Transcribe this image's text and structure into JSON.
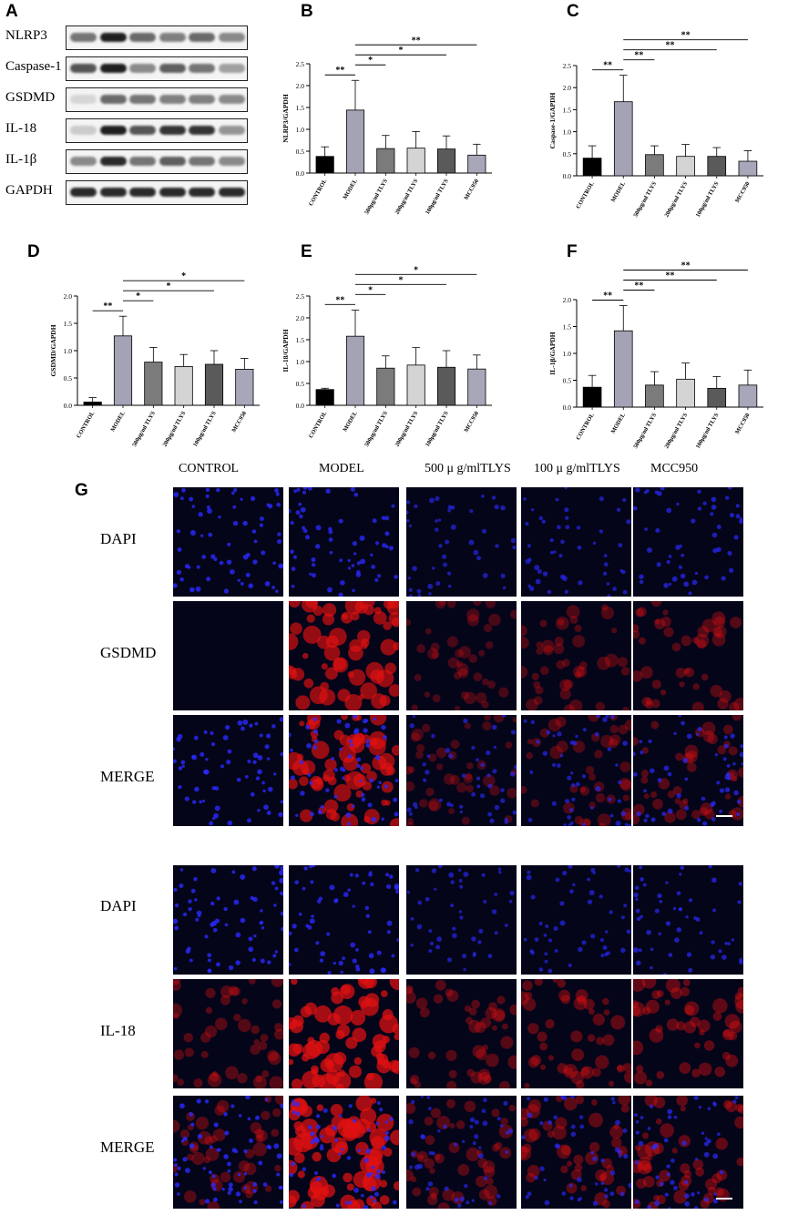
{
  "panels": {
    "a": "A",
    "b": "B",
    "c": "C",
    "d": "D",
    "e": "E",
    "f": "F",
    "g": "G"
  },
  "blot": {
    "labels": [
      "NLRP3",
      "Caspase-1",
      "GSDMD",
      "IL-18",
      "IL-1β",
      "GAPDH"
    ],
    "intensities": [
      [
        0.55,
        0.95,
        0.6,
        0.5,
        0.6,
        0.45
      ],
      [
        0.7,
        0.95,
        0.45,
        0.65,
        0.55,
        0.35
      ],
      [
        0.1,
        0.6,
        0.55,
        0.5,
        0.5,
        0.45
      ],
      [
        0.15,
        0.95,
        0.7,
        0.85,
        0.85,
        0.4
      ],
      [
        0.45,
        0.9,
        0.55,
        0.65,
        0.55,
        0.45
      ],
      [
        0.9,
        0.9,
        0.9,
        0.9,
        0.9,
        0.9
      ]
    ]
  },
  "fluorescence": {
    "columns": [
      "CONTROL",
      "MODEL",
      "500 μ g/mlTLYS",
      "100 μ g/mlTLYS",
      "MCC950"
    ],
    "block1_rows": [
      "DAPI",
      "GSDMD",
      "MERGE"
    ],
    "block2_rows": [
      "DAPI",
      "IL-18",
      "MERGE"
    ],
    "red_level_block1": [
      0.05,
      0.85,
      0.25,
      0.3,
      0.35
    ],
    "red_level_block2": [
      0.35,
      0.95,
      0.35,
      0.4,
      0.45
    ],
    "blue_density": [
      0.9,
      0.8,
      0.45,
      0.5,
      0.6
    ],
    "colors": {
      "dapi": "#2a2aff",
      "red": "#e01010",
      "background": "#05051a"
    }
  },
  "chart_data": [
    {
      "type": "bar",
      "ylabel": "NLRP3/GAPDH",
      "categories": [
        "CONTROL",
        "MODEL",
        "500μg/ml TLYS",
        "200μg/ml TLYS",
        "100μg/ml TLYS",
        "MCC950"
      ],
      "values": [
        0.38,
        1.44,
        0.56,
        0.57,
        0.55,
        0.41
      ],
      "errors": [
        0.22,
        0.68,
        0.3,
        0.38,
        0.3,
        0.25
      ],
      "ylim": [
        0,
        2.5
      ],
      "yticks": [
        "0.0",
        "0.5",
        "1.0",
        "1.5",
        "2.0",
        "2.5"
      ],
      "significance": [
        "**",
        "*",
        "*",
        "**"
      ],
      "colors": [
        "#000000",
        "#a3a3b5",
        "#7b7b7b",
        "#d4d4d4",
        "#5a5a5a",
        "#a7a7b9"
      ]
    },
    {
      "type": "bar",
      "ylabel": "Caspase-1/GAPDH",
      "categories": [
        "CONTROL",
        "MODEL",
        "500μg/ml TLYS",
        "200μg/ml TLYS",
        "100μg/ml TLYS",
        "MCC950"
      ],
      "values": [
        0.4,
        1.68,
        0.48,
        0.44,
        0.44,
        0.33
      ],
      "errors": [
        0.28,
        0.6,
        0.2,
        0.27,
        0.2,
        0.24
      ],
      "ylim": [
        0,
        2.5
      ],
      "yticks": [
        "0.0",
        "0.5",
        "1.0",
        "1.5",
        "2.0",
        "2.5"
      ],
      "significance": [
        "**",
        "**",
        "**",
        "**"
      ],
      "colors": [
        "#000000",
        "#a3a3b5",
        "#7b7b7b",
        "#d4d4d4",
        "#5a5a5a",
        "#a7a7b9"
      ]
    },
    {
      "type": "bar",
      "ylabel": "GSDMD/GAPDH",
      "categories": [
        "CONTROL",
        "MODEL",
        "500μg/ml TLYS",
        "200μg/ml TLYS",
        "100μg/ml TLYS",
        "MCC950"
      ],
      "values": [
        0.06,
        1.27,
        0.79,
        0.71,
        0.75,
        0.66
      ],
      "errors": [
        0.08,
        0.36,
        0.27,
        0.22,
        0.25,
        0.2
      ],
      "ylim": [
        0,
        2.0
      ],
      "yticks": [
        "0.0",
        "0.5",
        "1.0",
        "1.5",
        "2.0"
      ],
      "significance": [
        "**",
        "*",
        "*",
        "*"
      ],
      "colors": [
        "#000000",
        "#a3a3b5",
        "#7b7b7b",
        "#d4d4d4",
        "#5a5a5a",
        "#a7a7b9"
      ]
    },
    {
      "type": "bar",
      "ylabel": "IL-18/GAPDH",
      "categories": [
        "CONTROL",
        "MODEL",
        "500μg/ml TLYS",
        "200μg/ml TLYS",
        "100μg/ml TLYS",
        "MCC950"
      ],
      "values": [
        0.36,
        1.58,
        0.85,
        0.92,
        0.87,
        0.83
      ],
      "errors": [
        0.03,
        0.6,
        0.28,
        0.4,
        0.38,
        0.32
      ],
      "ylim": [
        0,
        2.5
      ],
      "yticks": [
        "0.0",
        "0.5",
        "1.0",
        "1.5",
        "2.0",
        "2.5"
      ],
      "significance": [
        "**",
        "*",
        "*",
        "*"
      ],
      "colors": [
        "#000000",
        "#a3a3b5",
        "#7b7b7b",
        "#d4d4d4",
        "#5a5a5a",
        "#a7a7b9"
      ]
    },
    {
      "type": "bar",
      "ylabel": "IL-1β/GAPDH",
      "categories": [
        "CONTROL",
        "MODEL",
        "500μg/ml TLYS",
        "200μg/ml TLYS",
        "100μg/ml TLYS",
        "MCC950"
      ],
      "values": [
        0.37,
        1.42,
        0.41,
        0.52,
        0.35,
        0.41
      ],
      "errors": [
        0.22,
        0.47,
        0.25,
        0.3,
        0.22,
        0.28
      ],
      "ylim": [
        0,
        2.0
      ],
      "yticks": [
        "0.0",
        "0.5",
        "1.0",
        "1.5",
        "2.0"
      ],
      "significance": [
        "**",
        "**",
        "**",
        "**"
      ],
      "colors": [
        "#000000",
        "#a3a3b5",
        "#7b7b7b",
        "#d4d4d4",
        "#5a5a5a",
        "#a7a7b9"
      ]
    }
  ]
}
